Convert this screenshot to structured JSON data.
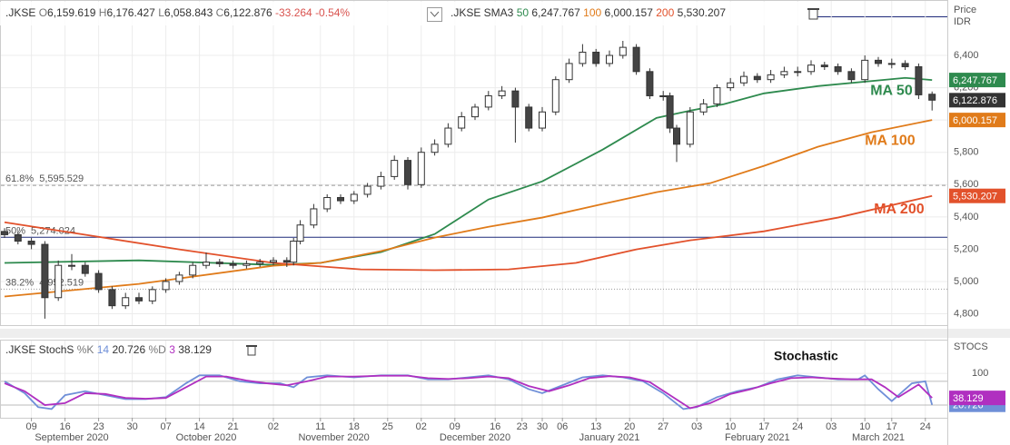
{
  "chart_data": [
    {
      "type": "candlestick",
      "header": {
        "symbol": ".JKSE",
        "o": "O",
        "open": "6,159.619",
        "h": "H",
        "high": "6,176.427",
        "l": "L",
        "low": "6,058.843",
        "c": "C",
        "close": "6,122.876",
        "change": "-33.264",
        "change_pct": "-0.54%",
        "study": ".JKSE SMA3"
      },
      "y_axis_label": [
        "Price",
        "IDR"
      ],
      "x": [
        0,
        2,
        4,
        6,
        8,
        10,
        12,
        14,
        16,
        18,
        20,
        22,
        24,
        26,
        28,
        30,
        32,
        34,
        36,
        38,
        40,
        42,
        43,
        44,
        46,
        48,
        50,
        52,
        54,
        56,
        58,
        60,
        62,
        64,
        66,
        68,
        70,
        72,
        74,
        76,
        78,
        80,
        82,
        84,
        86,
        88,
        90,
        92,
        94,
        96,
        98,
        99,
        100,
        102,
        104,
        106,
        108,
        110,
        112,
        114,
        116,
        118,
        120,
        122,
        124,
        126,
        128,
        130,
        132,
        134,
        136,
        138
      ],
      "open": [
        5310,
        5290,
        5250,
        5230,
        4900,
        5100,
        5100,
        5050,
        4950,
        4850,
        4900,
        4880,
        4950,
        5000,
        5040,
        5100,
        5120,
        5110,
        5100,
        5110,
        5120,
        5130,
        5120,
        5250,
        5350,
        5450,
        5520,
        5500,
        5540,
        5590,
        5650,
        5750,
        5600,
        5800,
        5850,
        5950,
        6020,
        6080,
        6150,
        6180,
        6080,
        5950,
        6050,
        6250,
        6350,
        6420,
        6350,
        6400,
        6450,
        6300,
        6150,
        6150,
        5950,
        5850,
        6050,
        6100,
        6200,
        6230,
        6270,
        6250,
        6280,
        6300,
        6300,
        6340,
        6330,
        6300,
        6250,
        6370,
        6350,
        6350,
        6330,
        6159.619
      ],
      "high": [
        5330,
        5310,
        5270,
        5250,
        5130,
        5170,
        5120,
        5070,
        4970,
        4930,
        4930,
        4970,
        5020,
        5060,
        5120,
        5180,
        5140,
        5130,
        5130,
        5140,
        5150,
        5150,
        5270,
        5380,
        5480,
        5540,
        5540,
        5560,
        5610,
        5680,
        5780,
        5770,
        5830,
        5880,
        5980,
        6050,
        6100,
        6180,
        6210,
        6200,
        6100,
        6080,
        6270,
        6380,
        6470,
        6440,
        6430,
        6490,
        6470,
        6320,
        6180,
        6170,
        5970,
        6080,
        6130,
        6220,
        6260,
        6300,
        6290,
        6310,
        6330,
        6330,
        6370,
        6360,
        6350,
        6320,
        6400,
        6390,
        6380,
        6370,
        6350,
        6176.427
      ],
      "low": [
        5270,
        5230,
        5200,
        4770,
        4880,
        5070,
        5030,
        4930,
        4830,
        4830,
        4860,
        4860,
        4930,
        4980,
        5020,
        5080,
        5090,
        5080,
        5080,
        5090,
        5100,
        5090,
        5100,
        5230,
        5330,
        5430,
        5480,
        5480,
        5520,
        5570,
        5630,
        5570,
        5580,
        5780,
        5830,
        5930,
        6000,
        6060,
        6130,
        5860,
        5930,
        5930,
        6030,
        6230,
        6330,
        6330,
        6330,
        6380,
        6280,
        6130,
        6120,
        5920,
        5740,
        5830,
        6030,
        6080,
        6180,
        6210,
        6230,
        6230,
        6260,
        6270,
        6280,
        6310,
        6280,
        6230,
        6230,
        6330,
        6320,
        6310,
        6130,
        6058.843
      ],
      "close": [
        5290,
        5250,
        5230,
        4900,
        5100,
        5100,
        5050,
        4950,
        4850,
        4900,
        4880,
        4950,
        5000,
        5040,
        5100,
        5120,
        5110,
        5100,
        5110,
        5120,
        5130,
        5120,
        5250,
        5350,
        5450,
        5520,
        5500,
        5540,
        5590,
        5650,
        5750,
        5600,
        5800,
        5850,
        5950,
        6020,
        6080,
        6150,
        6180,
        6080,
        5950,
        6050,
        6250,
        6350,
        6420,
        6350,
        6400,
        6450,
        6300,
        6150,
        6150,
        5950,
        5850,
        6050,
        6100,
        6200,
        6230,
        6270,
        6250,
        6280,
        6300,
        6300,
        6340,
        6330,
        6300,
        6250,
        6370,
        6350,
        6350,
        6330,
        6156,
        6122.876
      ],
      "up_color": "#ffffff",
      "down_color": "#444444",
      "series": [
        {
          "name": "MA 50",
          "param": "50",
          "last_label": "6,247.767",
          "color": "#2e8a4e",
          "x": [
            0,
            20,
            40,
            47,
            56,
            64,
            72,
            80,
            89,
            97,
            102,
            107,
            113,
            121,
            134,
            138
          ],
          "values": [
            5115,
            5131,
            5103,
            5115,
            5182,
            5294,
            5508,
            5620,
            5817,
            6013,
            6058,
            6098,
            6165,
            6210,
            6261,
            6247.767
          ]
        },
        {
          "name": "MA 100",
          "param": "100",
          "last_label": "6,000.157",
          "color": "#e07b1a",
          "x": [
            0,
            20,
            40,
            47,
            56,
            64,
            72,
            80,
            89,
            97,
            105,
            113,
            121,
            129,
            138
          ],
          "values": [
            4907,
            4985,
            5098,
            5115,
            5188,
            5272,
            5339,
            5396,
            5480,
            5553,
            5609,
            5716,
            5834,
            5924,
            6000.157
          ]
        },
        {
          "name": "MA 200",
          "param": "200",
          "last_label": "5,530.207",
          "color": "#e2512b",
          "x": [
            0,
            13,
            26,
            40,
            53,
            64,
            75,
            85,
            94,
            102,
            113,
            124,
            138
          ],
          "values": [
            5367,
            5283,
            5199,
            5115,
            5075,
            5070,
            5075,
            5115,
            5199,
            5255,
            5311,
            5396,
            5530.207
          ]
        }
      ],
      "level_lines": [
        {
          "name": "61.8%",
          "value": 5595.529,
          "label": "5,595.529",
          "color": "#999999",
          "dash": "4 3"
        },
        {
          "name": "50%",
          "value": 5274.024,
          "label": "5,274.024",
          "color": "#1f2a7a",
          "dash": "none"
        },
        {
          "name": "38.2%",
          "value": 4952.519,
          "label": "4,952.519",
          "color": "#999999",
          "dash": "1 2"
        }
      ],
      "xlim": [
        0,
        140
      ],
      "ylim": [
        4730,
        6715
      ],
      "yticks": [
        {
          "value": 4800,
          "label": "4,800"
        },
        {
          "value": 5000,
          "label": "5,000"
        },
        {
          "value": 5200,
          "label": "5,200"
        },
        {
          "value": 5400,
          "label": "5,400"
        },
        {
          "value": 5600,
          "label": "5,600"
        },
        {
          "value": 5800,
          "label": "5,800"
        },
        {
          "value": 6000,
          "label": "6,000"
        },
        {
          "value": 6200,
          "label": "6,200"
        },
        {
          "value": 6400,
          "label": "6,400"
        }
      ],
      "xticks": [
        {
          "value": 4,
          "label": "09"
        },
        {
          "value": 9,
          "label": "16"
        },
        {
          "value": 14,
          "label": "23"
        },
        {
          "value": 19,
          "label": "30"
        },
        {
          "value": 24,
          "label": "07"
        },
        {
          "value": 29,
          "label": "14"
        },
        {
          "value": 34,
          "label": "21"
        },
        {
          "value": 40,
          "label": "02"
        },
        {
          "value": 47,
          "label": "11"
        },
        {
          "value": 52,
          "label": "18"
        },
        {
          "value": 57,
          "label": "25"
        },
        {
          "value": 62,
          "label": "02"
        },
        {
          "value": 67,
          "label": "09"
        },
        {
          "value": 73,
          "label": "16"
        },
        {
          "value": 77,
          "label": "23"
        },
        {
          "value": 80,
          "label": "30"
        },
        {
          "value": 83,
          "label": "06"
        },
        {
          "value": 88,
          "label": "13"
        },
        {
          "value": 93,
          "label": "20"
        },
        {
          "value": 98,
          "label": "27"
        },
        {
          "value": 103,
          "label": "03"
        },
        {
          "value": 108,
          "label": "10"
        },
        {
          "value": 113,
          "label": "17"
        },
        {
          "value": 118,
          "label": "24"
        },
        {
          "value": 123,
          "label": "03"
        },
        {
          "value": 128,
          "label": "10"
        },
        {
          "value": 132,
          "label": "17"
        },
        {
          "value": 137,
          "label": "24"
        }
      ],
      "month_ticks": [
        {
          "value": 10,
          "label": "September 2020"
        },
        {
          "value": 30,
          "label": "October 2020"
        },
        {
          "value": 49,
          "label": "November 2020"
        },
        {
          "value": 70,
          "label": "December 2020"
        },
        {
          "value": 90,
          "label": "January 2021"
        },
        {
          "value": 112,
          "label": "February 2021"
        },
        {
          "value": 130,
          "label": "March 2021"
        }
      ],
      "grid": true
    },
    {
      "type": "line",
      "title": ".JKSE StochS",
      "annotation": "Stochastic",
      "y_axis_label": "STOCS",
      "series": [
        {
          "name": "%K",
          "param": "14",
          "last_label": "20.726",
          "color": "#6f8fd8",
          "x": [
            0,
            3,
            5,
            7,
            9,
            12,
            15,
            18,
            21,
            24,
            27,
            29,
            32,
            35,
            38,
            41,
            43,
            45,
            48,
            52,
            56,
            60,
            63,
            66,
            69,
            72,
            75,
            78,
            80,
            83,
            86,
            89,
            92,
            95,
            98,
            101,
            103,
            106,
            109,
            112,
            115,
            118,
            121,
            124,
            127,
            128,
            130,
            132,
            135,
            137,
            138
          ],
          "values": [
            80,
            50,
            15,
            10,
            45,
            55,
            45,
            35,
            35,
            40,
            75,
            95,
            95,
            80,
            75,
            75,
            65,
            90,
            95,
            90,
            95,
            95,
            85,
            85,
            90,
            95,
            85,
            60,
            50,
            70,
            90,
            95,
            90,
            80,
            50,
            10,
            15,
            40,
            55,
            65,
            85,
            95,
            90,
            85,
            85,
            95,
            60,
            30,
            75,
            80,
            20.726
          ]
        },
        {
          "name": "%D",
          "param": "3",
          "last_label": "38.129",
          "color": "#b02fc0",
          "x": [
            0,
            3,
            6,
            9,
            12,
            15,
            18,
            21,
            24,
            27,
            30,
            33,
            36,
            39,
            42,
            45,
            48,
            52,
            56,
            60,
            63,
            66,
            69,
            72,
            75,
            78,
            81,
            84,
            87,
            90,
            93,
            96,
            99,
            102,
            105,
            108,
            111,
            114,
            117,
            120,
            123,
            126,
            129,
            131,
            133,
            136,
            138
          ],
          "values": [
            75,
            55,
            20,
            25,
            50,
            48,
            38,
            36,
            38,
            65,
            92,
            92,
            82,
            75,
            70,
            80,
            92,
            92,
            94,
            94,
            88,
            86,
            88,
            92,
            88,
            68,
            55,
            70,
            88,
            93,
            90,
            78,
            45,
            12,
            25,
            48,
            60,
            75,
            88,
            90,
            87,
            85,
            85,
            65,
            40,
            72,
            38.129
          ]
        }
      ],
      "levels": [
        20,
        80
      ],
      "ylim": [
        -12,
        176
      ],
      "yticks": [
        100
      ]
    }
  ]
}
